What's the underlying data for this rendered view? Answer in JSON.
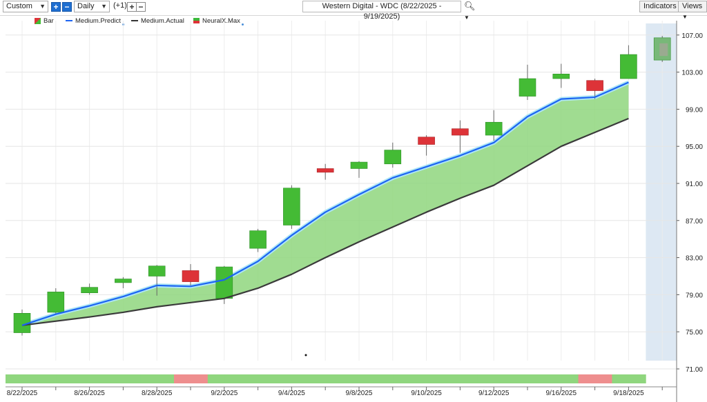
{
  "toolbar": {
    "layout_select": "Custom",
    "period_select": "Daily",
    "offset_label": "(+1)",
    "chart_title": "Western Digital - WDC (8/22/2025 - 9/19/2025)",
    "indicators_label": "Indicators",
    "views_label": "Views"
  },
  "legend": [
    {
      "label": "Bar",
      "color": "#3cb83a",
      "kind": "bar"
    },
    {
      "label": "Medium.Predict",
      "color": "#1c64f2",
      "kind": "line"
    },
    {
      "label": "Medium.Actual",
      "color": "#333333",
      "kind": "line"
    },
    {
      "label": "NeuralX.Max",
      "color": "#3cb83a",
      "kind": "flag"
    }
  ],
  "colors": {
    "up": "#44bb35",
    "down": "#dd3338",
    "predict_line": "#1c64f2",
    "actual_line": "#3a3a3a",
    "fill": "#8fd67e",
    "strip_up": "#8fd67e",
    "strip_down": "#ee8e8e",
    "forecast_shade": "#dde8f3"
  },
  "chart_data": {
    "type": "candlestick",
    "title": "Western Digital - WDC (8/22/2025 - 9/19/2025)",
    "ylim": [
      71,
      110
    ],
    "y_ticks": [
      "71.00",
      "75.00",
      "79.00",
      "83.00",
      "87.00",
      "91.00",
      "95.00",
      "99.00",
      "103.00",
      "107.00"
    ],
    "x_tick_labels": [
      {
        "i": 0,
        "label": "8/22/2025"
      },
      {
        "i": 4,
        "label": "8/26/2025"
      },
      {
        "i": 8,
        "label": "8/28/2025"
      },
      {
        "i": 12,
        "label": "9/2/2025"
      },
      {
        "i": 16,
        "label": "9/4/2025"
      },
      {
        "i": 20,
        "label": "9/8/2025"
      },
      {
        "i": 24,
        "label": "9/10/2025"
      },
      {
        "i": 28,
        "label": "9/12/2025"
      },
      {
        "i": 32,
        "label": "9/16/2025"
      },
      {
        "i": 36,
        "label": "9/18/2025"
      }
    ],
    "candles": [
      {
        "i": 0,
        "open": 74.9,
        "high": 77.4,
        "low": 74.6,
        "close": 77.0
      },
      {
        "i": 2,
        "open": 77.1,
        "high": 79.7,
        "low": 76.9,
        "close": 79.3
      },
      {
        "i": 4,
        "open": 79.2,
        "high": 80.2,
        "low": 79.0,
        "close": 79.8
      },
      {
        "i": 6,
        "open": 80.3,
        "high": 80.9,
        "low": 79.7,
        "close": 80.7
      },
      {
        "i": 8,
        "open": 81.0,
        "high": 82.2,
        "low": 78.9,
        "close": 82.1
      },
      {
        "i": 10,
        "open": 81.6,
        "high": 82.3,
        "low": 80.0,
        "close": 80.4
      },
      {
        "i": 12,
        "open": 78.6,
        "high": 82.1,
        "low": 78.0,
        "close": 82.0
      },
      {
        "i": 14,
        "open": 84.0,
        "high": 86.1,
        "low": 83.6,
        "close": 85.9
      },
      {
        "i": 16,
        "open": 86.5,
        "high": 90.8,
        "low": 86.1,
        "close": 90.5
      },
      {
        "i": 18,
        "open": 92.6,
        "high": 93.1,
        "low": 91.4,
        "close": 92.2
      },
      {
        "i": 20,
        "open": 92.6,
        "high": 93.4,
        "low": 91.6,
        "close": 93.3
      },
      {
        "i": 22,
        "open": 93.1,
        "high": 95.4,
        "low": 92.7,
        "close": 94.6
      },
      {
        "i": 24,
        "open": 96.0,
        "high": 96.2,
        "low": 94.0,
        "close": 95.2
      },
      {
        "i": 26,
        "open": 96.9,
        "high": 97.8,
        "low": 94.3,
        "close": 96.2
      },
      {
        "i": 28,
        "open": 96.2,
        "high": 98.9,
        "low": 95.6,
        "close": 97.6
      },
      {
        "i": 30,
        "open": 100.4,
        "high": 103.8,
        "low": 100.0,
        "close": 102.3
      },
      {
        "i": 32,
        "open": 102.3,
        "high": 103.9,
        "low": 101.3,
        "close": 102.8
      },
      {
        "i": 34,
        "open": 102.1,
        "high": 102.3,
        "low": 100.1,
        "close": 101.0
      },
      {
        "i": 36,
        "open": 102.3,
        "high": 105.9,
        "low": 102.3,
        "close": 104.9
      }
    ],
    "forecast_candle": {
      "i": 38,
      "open": 104.3,
      "high": 106.9,
      "low": 104.1,
      "close": 106.7
    },
    "series": [
      {
        "name": "Medium.Predict",
        "points": [
          [
            0,
            75.7
          ],
          [
            2,
            76.9
          ],
          [
            4,
            77.8
          ],
          [
            6,
            78.8
          ],
          [
            8,
            80.0
          ],
          [
            10,
            79.9
          ],
          [
            12,
            80.6
          ],
          [
            14,
            82.6
          ],
          [
            16,
            85.4
          ],
          [
            18,
            87.9
          ],
          [
            20,
            89.8
          ],
          [
            22,
            91.6
          ],
          [
            24,
            92.8
          ],
          [
            26,
            94.0
          ],
          [
            28,
            95.4
          ],
          [
            30,
            98.2
          ],
          [
            32,
            100.1
          ],
          [
            34,
            100.3
          ],
          [
            36,
            101.9
          ]
        ]
      },
      {
        "name": "Medium.Actual",
        "points": [
          [
            0,
            75.7
          ],
          [
            4,
            76.6
          ],
          [
            6,
            77.1
          ],
          [
            8,
            77.7
          ],
          [
            12,
            78.6
          ],
          [
            14,
            79.7
          ],
          [
            16,
            81.2
          ],
          [
            18,
            83.0
          ],
          [
            20,
            84.7
          ],
          [
            22,
            86.3
          ],
          [
            24,
            87.9
          ],
          [
            26,
            89.4
          ],
          [
            28,
            90.8
          ],
          [
            30,
            92.9
          ],
          [
            32,
            95.0
          ],
          [
            34,
            96.5
          ],
          [
            36,
            98.0
          ]
        ]
      }
    ],
    "signal_strip": [
      "up",
      "up",
      "up",
      "up",
      "up",
      "up",
      "up",
      "up",
      "up",
      "up",
      "down",
      "down",
      "up",
      "up",
      "up",
      "up",
      "up",
      "up",
      "up",
      "up",
      "up",
      "up",
      "up",
      "up",
      "up",
      "up",
      "up",
      "up",
      "up",
      "up",
      "up",
      "up",
      "up",
      "up",
      "down",
      "down",
      "up",
      "up"
    ]
  }
}
